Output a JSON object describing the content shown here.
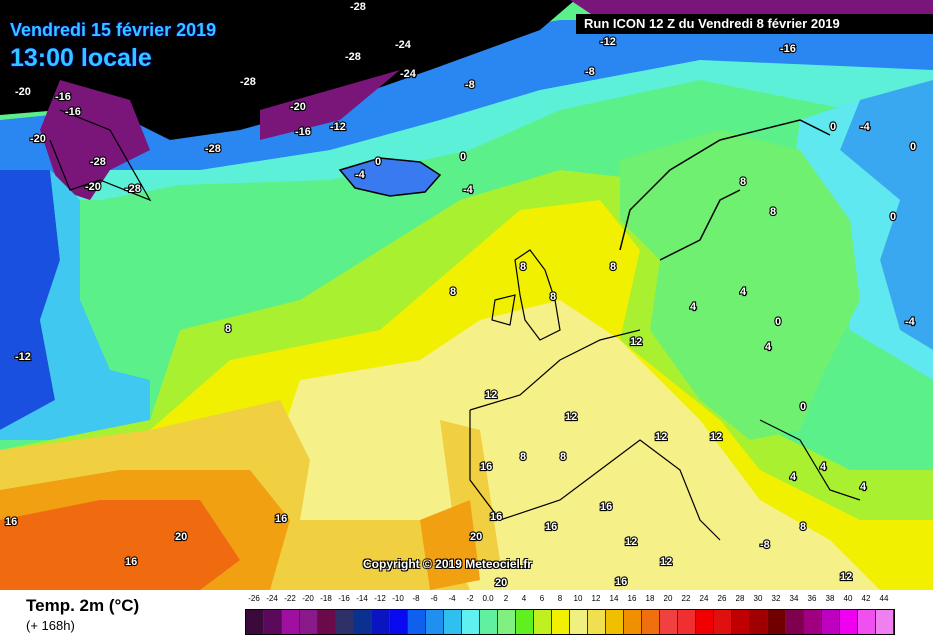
{
  "header": {
    "date": "Vendredi 15 février 2019",
    "time": "13:00 locale",
    "run": "Run ICON 12 Z du Vendredi 8 février 2019"
  },
  "copyright": "Copyright © 2019 Meteociel.fr",
  "legend": {
    "variable": "Temp. 2m (°C)",
    "lead": "(+ 168h)",
    "ticks": [
      "-26",
      "-24",
      "-22",
      "-20",
      "-18",
      "-16",
      "-14",
      "-12",
      "-10",
      "-8",
      "-6",
      "-4",
      "-2",
      "0.0",
      "2",
      "4",
      "6",
      "8",
      "10",
      "12",
      "14",
      "16",
      "18",
      "20",
      "22",
      "24",
      "26",
      "28",
      "30",
      "32",
      "34",
      "36",
      "38",
      "40",
      "42",
      "44"
    ],
    "colors": [
      "#3a0a3a",
      "#5a0a5a",
      "#a010a0",
      "#8a1a8a",
      "#6a0a4a",
      "#303068",
      "#0a3090",
      "#0a14c0",
      "#0a0af0",
      "#1060f0",
      "#2090f0",
      "#30c0f0",
      "#60f0f0",
      "#60f0a0",
      "#80f080",
      "#60f020",
      "#c0f020",
      "#f0f000",
      "#f0f080",
      "#f0e050",
      "#f0c000",
      "#f09000",
      "#f07010",
      "#f04040",
      "#f03030",
      "#f00000",
      "#e01010",
      "#c00000",
      "#a00000",
      "#700000",
      "#800050",
      "#a00080",
      "#c000c0",
      "#f000f0",
      "#f050f0",
      "#f080f0"
    ]
  },
  "map_labels": [
    "-28",
    "-28",
    "-24",
    "-20",
    "-16",
    "-20",
    "-16",
    "-28",
    "-20",
    "-28",
    "-28",
    "-24",
    "-20",
    "-16",
    "-28",
    "-12",
    "-8",
    "0",
    "-4",
    "0",
    "-4",
    "-16",
    "-12",
    "-8",
    "8",
    "8",
    "8",
    "8",
    "8",
    "12",
    "12",
    "12",
    "16",
    "16",
    "16",
    "16",
    "20",
    "20",
    "16",
    "16",
    "12",
    "12",
    "12",
    "8",
    "8",
    "4",
    "4",
    "4",
    "0",
    "0",
    "0",
    "0",
    "-4",
    "-4",
    "0",
    "4",
    "8",
    "8",
    "12",
    "12",
    "8",
    "4",
    "4",
    "-8",
    "-12",
    "16",
    "20",
    "16"
  ]
}
